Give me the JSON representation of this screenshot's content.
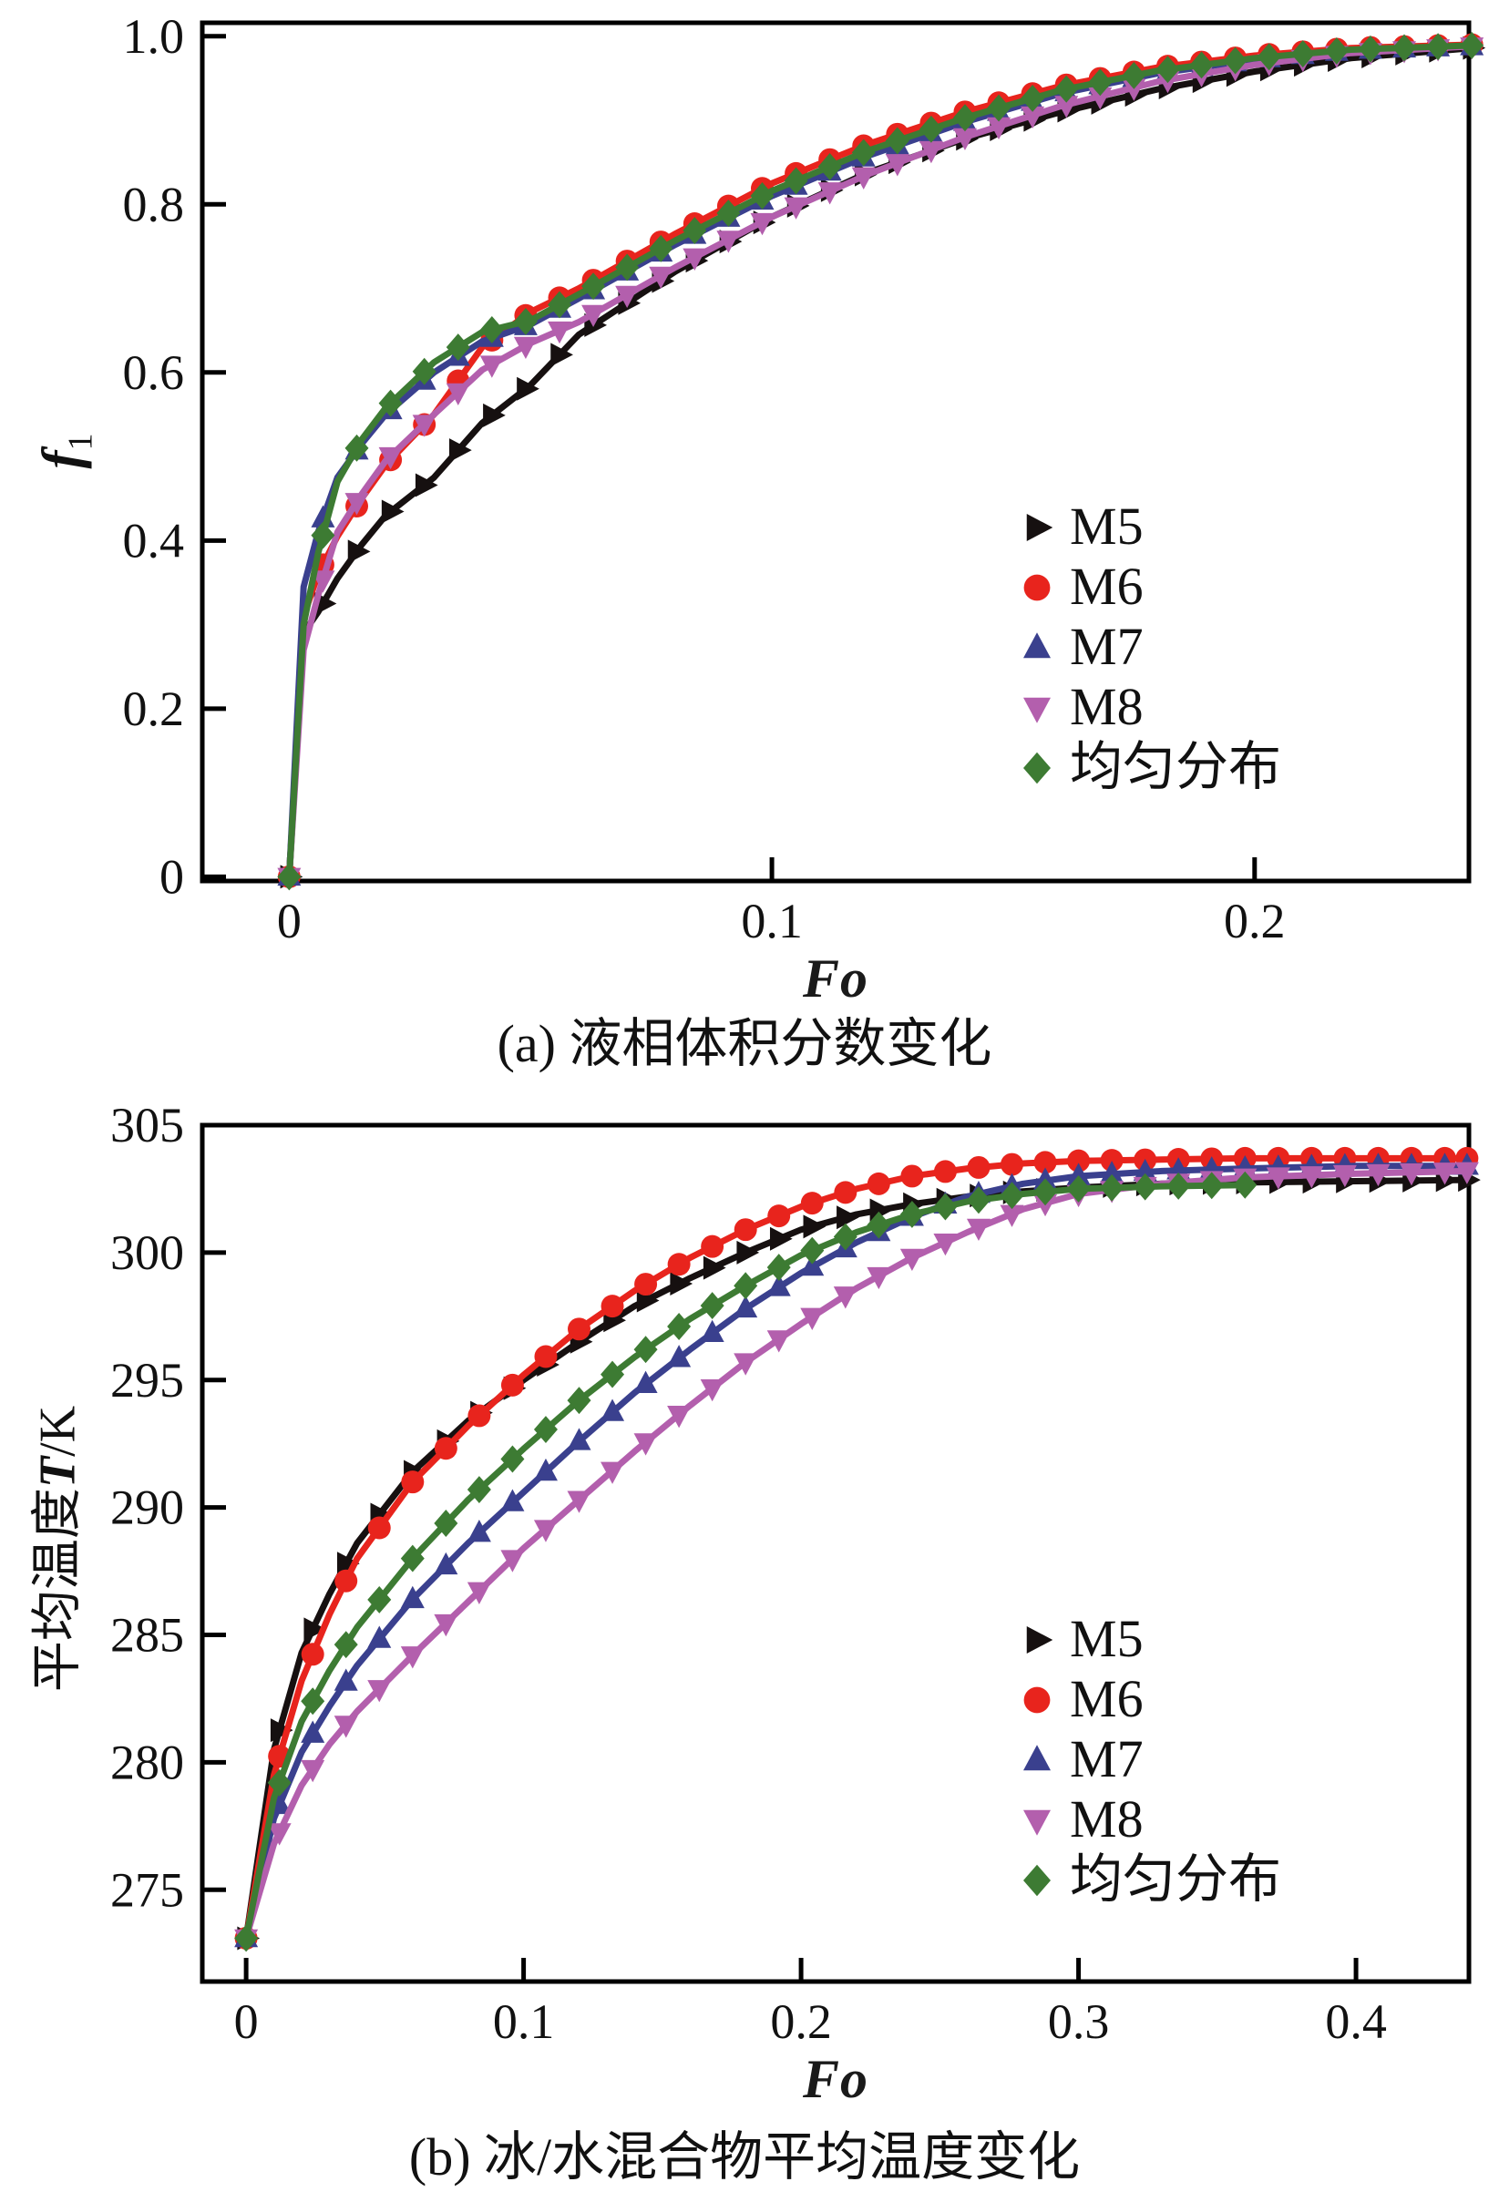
{
  "figure": {
    "background": "#ffffff",
    "frame_color": "#000000"
  },
  "legend": {
    "items": [
      {
        "label": "M5",
        "marker": "triangle-right",
        "color": "#161010"
      },
      {
        "label": "M6",
        "marker": "circle",
        "color": "#e8241d"
      },
      {
        "label": "M7",
        "marker": "triangle-up",
        "color": "#3a408e"
      },
      {
        "label": "M8",
        "marker": "triangle-down",
        "color": "#b35fad"
      },
      {
        "label": "均匀分布",
        "marker": "diamond",
        "color": "#3d7b33"
      }
    ]
  },
  "chart_data": [
    {
      "type": "line",
      "title": "(a) 液相体积分数变化",
      "xlabel": "Fo",
      "ylabel": "f1",
      "ylabel_parts": {
        "symbol": "f",
        "sub": "1"
      },
      "xlim": [
        -0.018,
        0.2444
      ],
      "ylim": [
        -0.005,
        1.016
      ],
      "xticks": [
        {
          "value": 0,
          "label": "0"
        },
        {
          "value": 0.1,
          "label": "0.1"
        },
        {
          "value": 0.2,
          "label": "0.2"
        }
      ],
      "yticks": [
        {
          "value": 0,
          "label": "0"
        },
        {
          "value": 0.2,
          "label": "0.2"
        },
        {
          "value": 0.4,
          "label": "0.4"
        },
        {
          "value": 0.6,
          "label": "0.6"
        },
        {
          "value": 0.8,
          "label": "0.8"
        },
        {
          "value": 1.0,
          "label": "1.0"
        }
      ],
      "grid": false,
      "legend_position": "center-right",
      "marker_step": 0.007,
      "x": [
        0,
        0.003,
        0.006,
        0.01,
        0.015,
        0.02,
        0.03,
        0.04,
        0.05,
        0.06,
        0.08,
        0.1,
        0.12,
        0.14,
        0.16,
        0.18,
        0.2,
        0.22,
        0.245
      ],
      "series": [
        {
          "name": "M5",
          "marker": "triangle-right",
          "color": "#161010",
          "values": [
            0,
            0.29,
            0.315,
            0.355,
            0.395,
            0.43,
            0.475,
            0.54,
            0.585,
            0.645,
            0.72,
            0.785,
            0.838,
            0.878,
            0.91,
            0.937,
            0.958,
            0.974,
            0.986
          ]
        },
        {
          "name": "M6",
          "marker": "circle",
          "color": "#e8241d",
          "values": [
            0,
            0.31,
            0.36,
            0.405,
            0.45,
            0.49,
            0.55,
            0.63,
            0.672,
            0.7,
            0.765,
            0.825,
            0.872,
            0.91,
            0.941,
            0.963,
            0.977,
            0.986,
            0.99
          ]
        },
        {
          "name": "M7",
          "marker": "triangle-up",
          "color": "#3a408e",
          "values": [
            0,
            0.345,
            0.41,
            0.475,
            0.515,
            0.55,
            0.6,
            0.637,
            0.657,
            0.688,
            0.752,
            0.81,
            0.858,
            0.898,
            0.932,
            0.956,
            0.972,
            0.983,
            0.988
          ]
        },
        {
          "name": "M8",
          "marker": "triangle-down",
          "color": "#b35fad",
          "values": [
            0,
            0.27,
            0.335,
            0.41,
            0.455,
            0.495,
            0.55,
            0.603,
            0.635,
            0.66,
            0.725,
            0.785,
            0.836,
            0.88,
            0.917,
            0.946,
            0.966,
            0.98,
            0.988
          ]
        },
        {
          "name": "均匀分布",
          "marker": "diamond",
          "color": "#3d7b33",
          "values": [
            0,
            0.3,
            0.385,
            0.47,
            0.52,
            0.558,
            0.612,
            0.648,
            0.662,
            0.693,
            0.757,
            0.816,
            0.864,
            0.903,
            0.936,
            0.959,
            0.974,
            0.984,
            0.989
          ]
        }
      ]
    },
    {
      "type": "line",
      "title": "(b) 冰/水混合物平均温度变化",
      "xlabel": "Fo",
      "ylabel": "平均温度T/K",
      "ylabel_parts": {
        "prefix": "平均温度",
        "symbol": "T",
        "suffix": "/K"
      },
      "xlim": [
        -0.0158,
        0.4407
      ],
      "ylim": [
        271.4,
        305
      ],
      "xticks": [
        {
          "value": 0,
          "label": "0"
        },
        {
          "value": 0.1,
          "label": "0.1"
        },
        {
          "value": 0.2,
          "label": "0.2"
        },
        {
          "value": 0.3,
          "label": "0.3"
        },
        {
          "value": 0.4,
          "label": "0.4"
        }
      ],
      "yticks": [
        {
          "value": 275,
          "label": "275"
        },
        {
          "value": 280,
          "label": "280"
        },
        {
          "value": 285,
          "label": "285"
        },
        {
          "value": 290,
          "label": "290"
        },
        {
          "value": 295,
          "label": "295"
        },
        {
          "value": 300,
          "label": "300"
        },
        {
          "value": 305,
          "label": "305"
        }
      ],
      "grid": false,
      "legend_position": "center-right",
      "marker_step": 0.012,
      "x": [
        0,
        0.01,
        0.02,
        0.03,
        0.04,
        0.06,
        0.08,
        0.1,
        0.12,
        0.14,
        0.16,
        0.18,
        0.2,
        0.22,
        0.24,
        0.26,
        0.28,
        0.3,
        0.33,
        0.36,
        0.4,
        0.44
      ],
      "series": [
        {
          "name": "M5",
          "marker": "triangle-right",
          "color": "#161010",
          "values": [
            273.1,
            280.5,
            284.3,
            286.6,
            288.6,
            291.4,
            293.4,
            295.0,
            296.5,
            297.9,
            299.0,
            300.0,
            300.9,
            301.5,
            301.9,
            302.2,
            302.4,
            302.55,
            302.7,
            302.75,
            302.8,
            302.85
          ]
        },
        {
          "name": "M6",
          "marker": "circle",
          "color": "#e8241d",
          "values": [
            273.1,
            279.5,
            283.2,
            285.8,
            288.0,
            291.0,
            293.2,
            295.2,
            297.0,
            298.5,
            299.8,
            300.9,
            301.8,
            302.5,
            303.0,
            303.3,
            303.5,
            303.6,
            303.65,
            303.7,
            303.7,
            303.7
          ]
        },
        {
          "name": "M7",
          "marker": "triangle-up",
          "color": "#3a408e",
          "values": [
            273.1,
            277.8,
            280.4,
            282.2,
            283.8,
            286.4,
            288.6,
            290.6,
            292.6,
            294.5,
            296.2,
            297.8,
            299.2,
            300.4,
            301.4,
            302.2,
            302.7,
            303.0,
            303.2,
            303.3,
            303.4,
            303.4
          ]
        },
        {
          "name": "M8",
          "marker": "triangle-down",
          "color": "#b35fad",
          "values": [
            273.1,
            276.8,
            279.1,
            280.7,
            282.0,
            284.2,
            286.3,
            288.4,
            290.3,
            292.2,
            294.0,
            295.7,
            297.2,
            298.6,
            299.8,
            300.8,
            301.7,
            302.3,
            302.7,
            302.95,
            303.1,
            303.2
          ]
        },
        {
          "name": "均匀分布",
          "marker": "diamond",
          "color": "#3d7b33",
          "values": [
            273.1,
            278.6,
            281.6,
            283.6,
            285.3,
            288.0,
            290.3,
            292.3,
            294.2,
            295.9,
            297.4,
            298.7,
            299.9,
            300.8,
            301.5,
            302.0,
            302.3,
            302.5,
            302.6,
            302.65,
            null,
            null
          ]
        }
      ]
    }
  ],
  "layout_note": "two stacked line charts sharing style"
}
